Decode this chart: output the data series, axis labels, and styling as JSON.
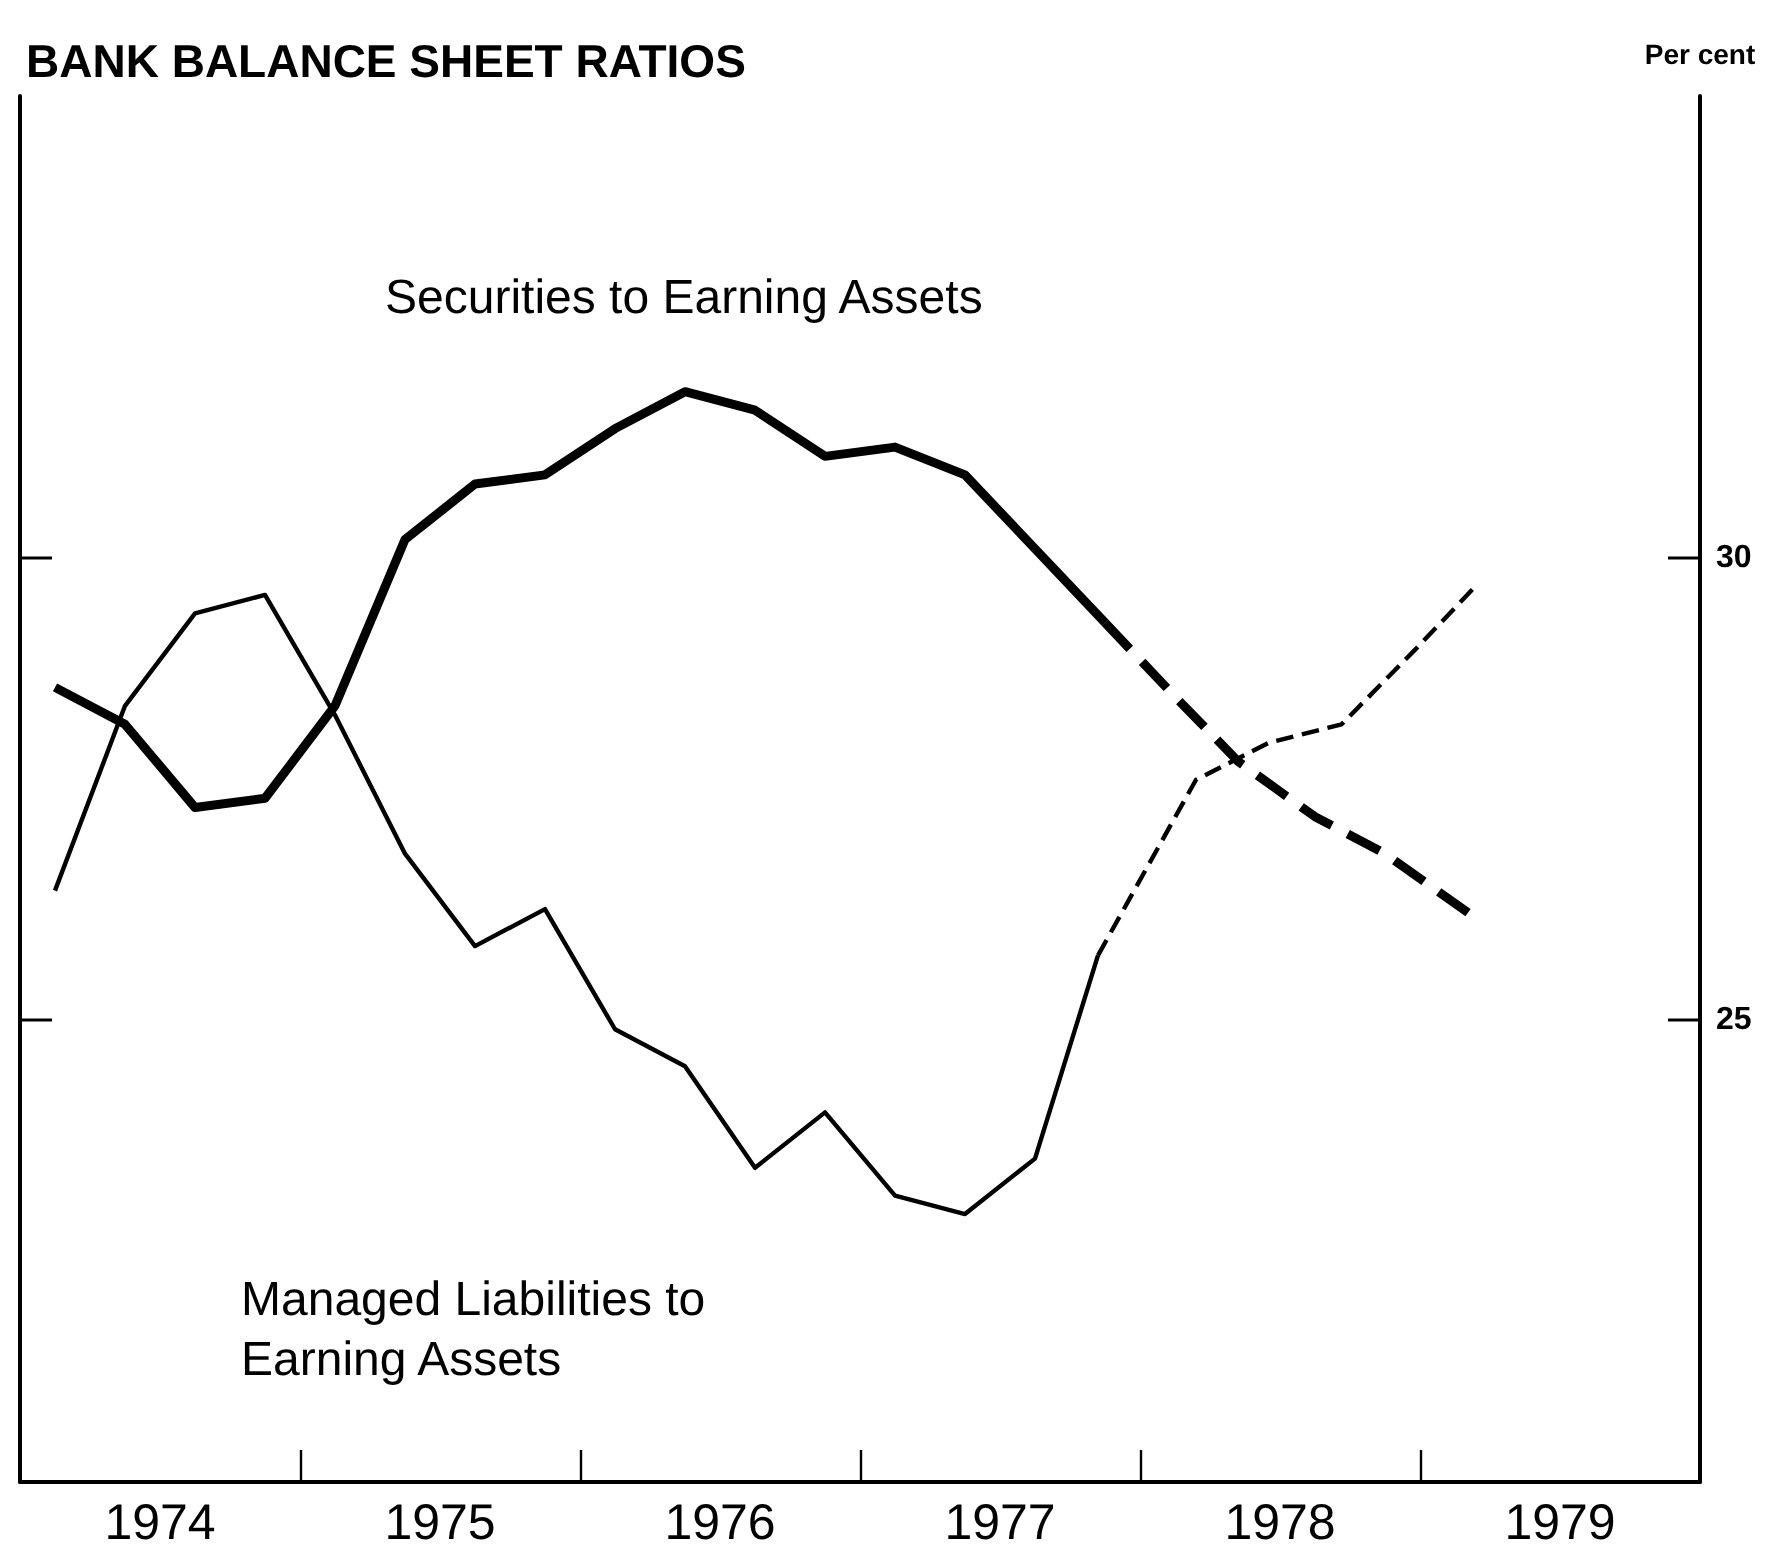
{
  "chart_data": {
    "type": "line",
    "title": "BANK BALANCE SHEET RATIOS",
    "ylabel": "Per cent",
    "xlim": [
      1974,
      1980
    ],
    "xticks": [
      {
        "value": 1974.5,
        "label": "1974"
      },
      {
        "value": 1975,
        "label": null
      },
      {
        "value": 1975.5,
        "label": "1975"
      },
      {
        "value": 1976,
        "label": null
      },
      {
        "value": 1976.5,
        "label": "1976"
      },
      {
        "value": 1977,
        "label": null
      },
      {
        "value": 1977.5,
        "label": "1977"
      },
      {
        "value": 1978,
        "label": null
      },
      {
        "value": 1978.5,
        "label": "1978"
      },
      {
        "value": 1979,
        "label": null
      },
      {
        "value": 1979.5,
        "label": "1979"
      }
    ],
    "ylim": [
      20,
      35
    ],
    "yticks": [
      25,
      30
    ],
    "series": [
      {
        "name": "Securities to Earning Assets",
        "color": "#000000",
        "line_style": "solid",
        "x": [
          1974.125,
          1974.375,
          1974.625,
          1974.875,
          1975.125,
          1975.375,
          1975.625,
          1975.875,
          1976.125,
          1976.375,
          1976.625,
          1976.875,
          1977.125,
          1977.375,
          1977.625,
          1977.875
        ],
        "values": [
          28.6,
          28.2,
          27.3,
          27.4,
          28.4,
          30.2,
          30.8,
          30.9,
          31.4,
          31.8,
          31.6,
          31.1,
          31.2,
          30.9,
          30.1,
          29.3
        ]
      },
      {
        "color": "#000000",
        "line_style": "dashed",
        "x": [
          1977.875,
          1978.125,
          1978.35,
          1978.625,
          1978.875,
          1979.2
        ],
        "values": [
          29.3,
          28.5,
          27.8,
          27.2,
          26.8,
          26.1
        ]
      },
      {
        "name": "Managed Liabilities to Earning Assets",
        "color": "#000000",
        "line_style": "solid",
        "x": [
          1974.125,
          1974.375,
          1974.625,
          1974.875,
          1975.125,
          1975.375,
          1975.625,
          1975.875,
          1976.125,
          1976.375,
          1976.625,
          1976.875,
          1977.125,
          1977.375,
          1977.625,
          1977.85
        ],
        "values": [
          26.4,
          28.4,
          29.4,
          29.6,
          28.3,
          26.8,
          25.8,
          26.2,
          24.9,
          24.5,
          23.4,
          24.0,
          23.1,
          22.9,
          23.5,
          25.7
        ]
      },
      {
        "color": "#000000",
        "line_style": "dashed",
        "x": [
          1977.85,
          1978.2,
          1978.46,
          1978.72,
          1978.98,
          1979.2
        ],
        "values": [
          25.7,
          27.6,
          28.0,
          28.2,
          29.0,
          29.7
        ]
      }
    ]
  }
}
